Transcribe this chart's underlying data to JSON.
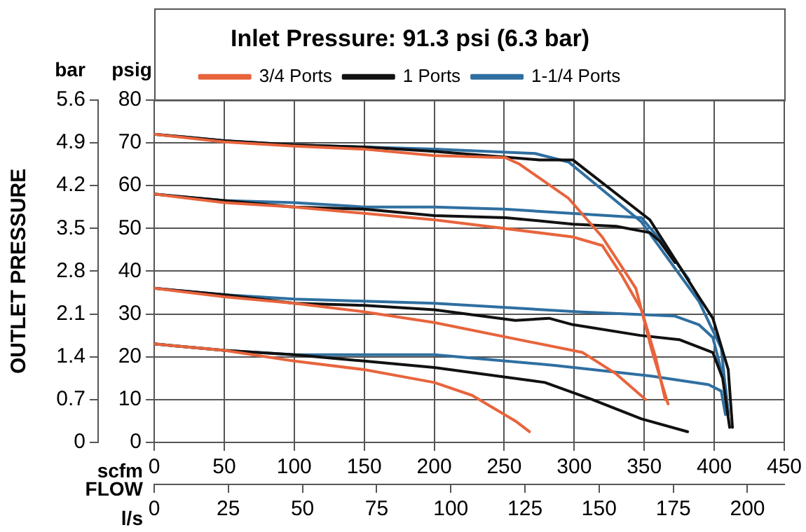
{
  "chart_data": {
    "type": "line",
    "title": "Inlet Pressure: 91.3 psi (6.3 bar)",
    "xlabel": "scfm",
    "x2label": "l/s",
    "ylabel": "psig",
    "y2label": "bar",
    "annotations": [
      "FLOW",
      "OUTLET PRESSURE"
    ],
    "xlim": [
      0,
      450
    ],
    "xticks": [
      0,
      50,
      100,
      150,
      200,
      250,
      300,
      350,
      400,
      450
    ],
    "x2lim": [
      0,
      212.4
    ],
    "x2ticks": [
      0,
      25,
      50,
      75,
      100,
      125,
      150,
      175,
      200
    ],
    "ylim": [
      0,
      80
    ],
    "yticks": [
      0,
      10,
      20,
      30,
      40,
      50,
      60,
      70,
      80
    ],
    "y2lim": [
      0,
      5.6
    ],
    "y2ticks": [
      0,
      0.7,
      1.4,
      2.1,
      2.8,
      3.5,
      4.2,
      4.9,
      5.6
    ],
    "grid": true,
    "legend": "top",
    "marker": "none",
    "line_style": "solid",
    "series": [
      {
        "name": "3/4 Ports",
        "color": "#e8643c",
        "x": [
          0,
          50,
          100,
          150,
          200,
          251,
          261,
          296,
          320,
          344,
          348,
          358,
          365
        ],
        "values": [
          72,
          70.2,
          69.2,
          68.5,
          67,
          66.5,
          65,
          57,
          48,
          36,
          31,
          20,
          10
        ]
      },
      {
        "color": "#e8643c",
        "x": [
          0,
          50,
          100,
          150,
          200,
          299,
          320,
          334,
          348,
          355,
          367
        ],
        "values": [
          58,
          56,
          55,
          53.5,
          52,
          48,
          46,
          39,
          31,
          22,
          9
        ]
      },
      {
        "color": "#e8643c",
        "x": [
          0,
          50,
          100,
          150,
          200,
          306,
          330,
          351
        ],
        "values": [
          36,
          34,
          32.5,
          30.5,
          28,
          21,
          16,
          10
        ]
      },
      {
        "color": "#e8643c",
        "x": [
          0,
          50,
          100,
          150,
          200,
          227,
          258,
          268
        ],
        "values": [
          23,
          21.5,
          19,
          17,
          14,
          11,
          5,
          2.5
        ]
      },
      {
        "name": "1 Ports",
        "color": "#111111",
        "x": [
          0,
          50,
          100,
          150,
          200,
          275,
          299,
          354,
          389,
          399,
          410,
          413
        ],
        "values": [
          72,
          70.5,
          69.5,
          69,
          68,
          66,
          66,
          52,
          34,
          29,
          17,
          3.5
        ]
      },
      {
        "color": "#111111",
        "x": [
          0,
          50,
          100,
          150,
          200,
          251,
          299,
          330,
          354,
          361,
          372
        ],
        "values": [
          58,
          56.5,
          55,
          54.5,
          53,
          52.5,
          51,
          50.5,
          49,
          47,
          42
        ]
      },
      {
        "color": "#111111",
        "x": [
          0,
          50,
          100,
          150,
          200,
          258,
          282,
          299,
          347,
          375,
          399,
          406,
          411
        ],
        "values": [
          36,
          34.5,
          32.5,
          32,
          31,
          28.5,
          29,
          27.5,
          25,
          24,
          21,
          15,
          3.5
        ]
      },
      {
        "color": "#111111",
        "x": [
          0,
          50,
          100,
          150,
          200,
          279,
          313,
          348,
          381
        ],
        "values": [
          23,
          21.5,
          20.5,
          19,
          17.5,
          14,
          10,
          5.5,
          2.5
        ]
      },
      {
        "name": "1-1/4 Ports",
        "color": "#2f6fa0",
        "x": [
          0,
          50,
          100,
          150,
          200,
          272,
          296,
          348,
          389,
          405,
          410
        ],
        "values": [
          72,
          70.5,
          69.5,
          69,
          68.5,
          67.5,
          65.5,
          51.5,
          33,
          22,
          6.5
        ]
      },
      {
        "color": "#2f6fa0",
        "x": [
          0,
          50,
          100,
          150,
          200,
          250,
          348,
          361,
          382
        ],
        "values": [
          58,
          56.5,
          56,
          55,
          55,
          54.5,
          52.5,
          47.5,
          38
        ]
      },
      {
        "color": "#2f6fa0",
        "x": [
          0,
          50,
          100,
          150,
          200,
          303,
          372,
          389,
          399,
          408,
          410
        ],
        "values": [
          36,
          34.5,
          33.5,
          33,
          32.5,
          30.5,
          29.5,
          27.5,
          24.5,
          13,
          6.5
        ]
      },
      {
        "color": "#2f6fa0",
        "x": [
          0,
          50,
          100,
          150,
          200,
          286,
          355,
          396,
          405,
          408
        ],
        "values": [
          23,
          21.5,
          20.5,
          20.5,
          20.5,
          18,
          15.5,
          13.5,
          12,
          6.5
        ]
      }
    ]
  }
}
